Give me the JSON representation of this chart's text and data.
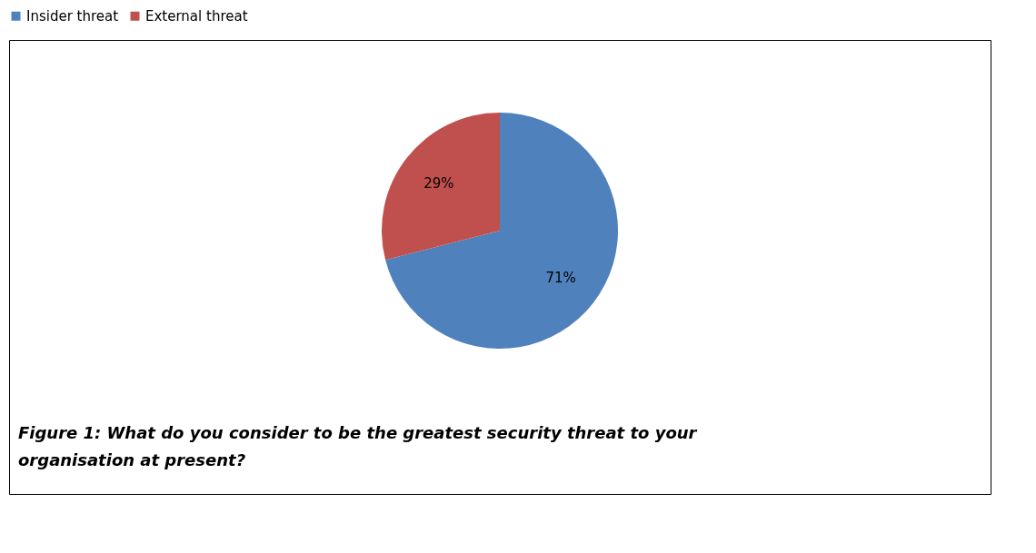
{
  "chart_data": {
    "type": "pie",
    "categories": [
      "Insider threat",
      "External threat"
    ],
    "values": [
      71,
      29
    ],
    "colors": [
      "#4f81bd",
      "#c0504d"
    ],
    "value_labels": [
      "71%",
      "29%"
    ],
    "legend": "top",
    "annotations": [
      "Figure 1: What do you consider to be the greatest security threat to your organisation at present?"
    ]
  }
}
